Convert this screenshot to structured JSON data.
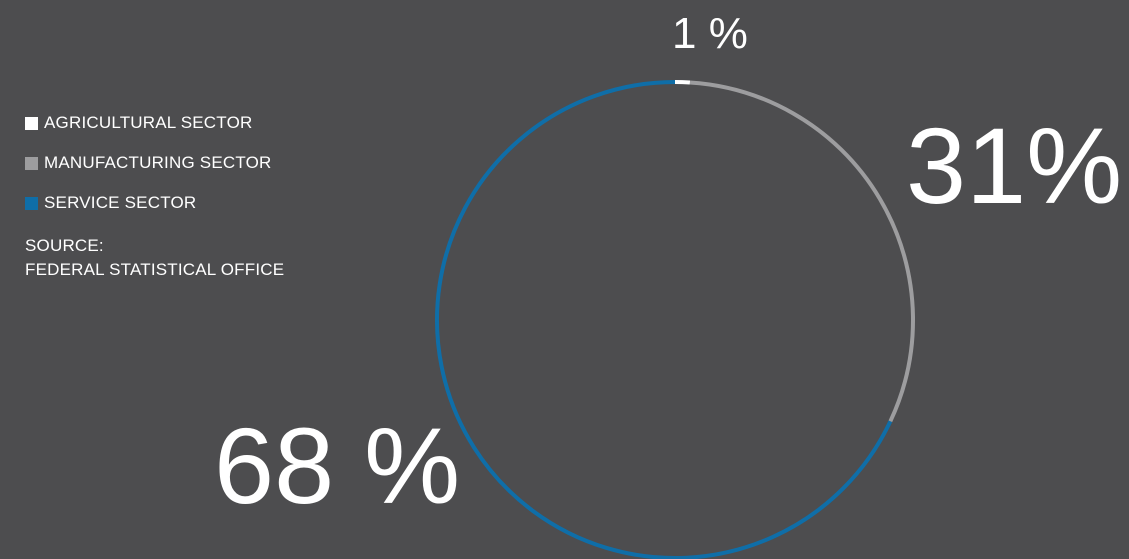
{
  "chart_data": {
    "type": "pie",
    "style": "ring",
    "categories": [
      "AGRICULTURAL SECTOR",
      "MANUFACTURING SECTOR",
      "SERVICE SECTOR"
    ],
    "values": [
      1,
      31,
      68
    ],
    "colors": [
      "#ffffff",
      "#9d9d9f",
      "#0f6ea8"
    ],
    "data_labels": [
      "1 %",
      "31%",
      "68 %"
    ],
    "legend_position": "left"
  },
  "legend": {
    "items": [
      {
        "label": "AGRICULTURAL SECTOR",
        "color": "#ffffff"
      },
      {
        "label": "MANUFACTURING SECTOR",
        "color": "#9d9d9f"
      },
      {
        "label": "SERVICE SECTOR",
        "color": "#0f6ea8"
      }
    ]
  },
  "source": {
    "line1": "SOURCE:",
    "line2": "FEDERAL STATISTICAL OFFICE"
  },
  "colors": {
    "background": "#4d4d4f",
    "text": "#ffffff"
  }
}
